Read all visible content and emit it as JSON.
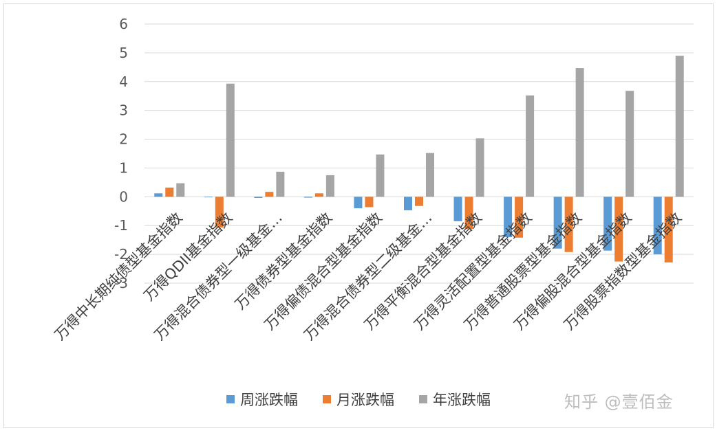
{
  "chart_data": {
    "type": "bar",
    "title": "",
    "xlabel": "",
    "ylabel": "",
    "ylim": [
      -3,
      6
    ],
    "yticks": [
      6,
      5,
      4,
      3,
      2,
      1,
      0,
      -1,
      -2,
      -3
    ],
    "grid": true,
    "legend_position": "bottom",
    "categories": [
      "万得中长期纯债型基金指数",
      "万得QDII基金指数",
      "万得混合债券型一级基金…",
      "万得债券型基金指数",
      "万得偏债混合型基金指数",
      "万得混合债券型二级基金…",
      "万得平衡混合型基金指数",
      "万得灵活配置型基金指数",
      "万得普通股票型基金指数",
      "万得偏股混合型基金指数",
      "万得股票指数型基金指数"
    ],
    "series": [
      {
        "name": "周涨跌幅",
        "color": "#5B9BD5",
        "values": [
          0.12,
          0.0,
          -0.04,
          -0.03,
          -0.4,
          -0.47,
          -0.85,
          -1.4,
          -1.8,
          -1.87,
          -2.0
        ]
      },
      {
        "name": "月涨跌幅",
        "color": "#ED7D31",
        "values": [
          0.32,
          -1.07,
          0.17,
          0.12,
          -0.36,
          -0.32,
          -1.12,
          -1.42,
          -1.92,
          -2.25,
          -2.28
        ]
      },
      {
        "name": "年涨跌幅",
        "color": "#A5A5A5",
        "values": [
          0.47,
          3.93,
          0.87,
          0.75,
          1.47,
          1.52,
          2.03,
          3.52,
          4.47,
          3.68,
          4.9
        ]
      }
    ]
  },
  "watermark": "知乎 @壹佰金"
}
